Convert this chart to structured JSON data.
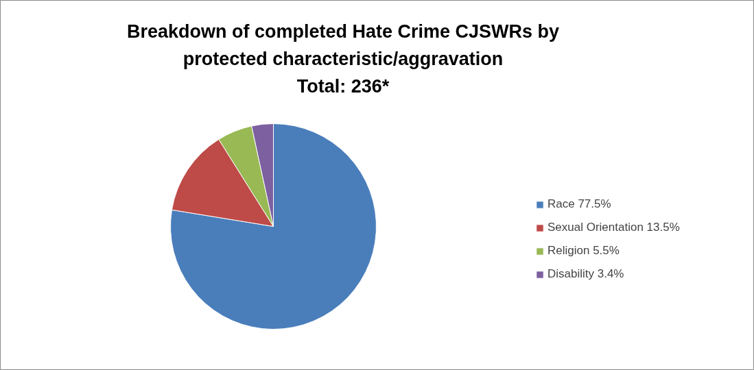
{
  "chart_data": {
    "type": "pie",
    "title": "Breakdown of completed Hate Crime CJSWRs by protected characteristic/aggravation",
    "subtitle": "Total: 236*",
    "categories": [
      "Race 77.5%",
      "Sexual Orientation 13.5%",
      "Religion 5.5%",
      "Disability 3.4%"
    ],
    "values": [
      77.5,
      13.5,
      5.5,
      3.4
    ],
    "colors": [
      "#4a7ebb",
      "#be4b48",
      "#98b954",
      "#7d60a0"
    ],
    "legend": "right"
  }
}
